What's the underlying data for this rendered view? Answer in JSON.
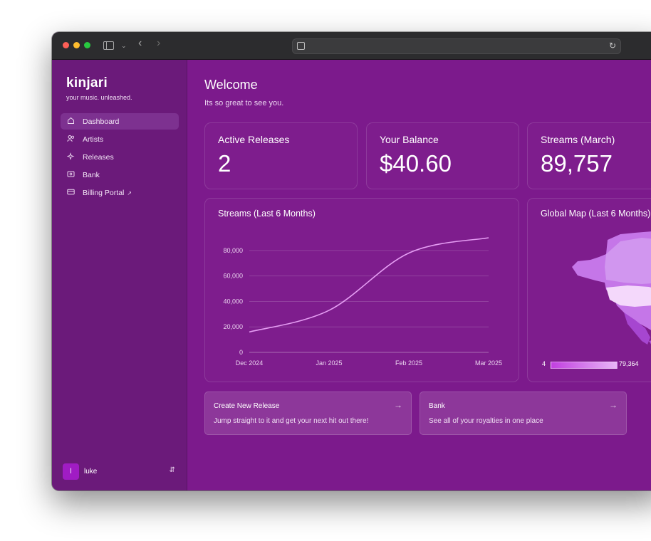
{
  "app": {
    "brand": "kinjari",
    "tagline": "your music. unleashed."
  },
  "nav": {
    "items": [
      {
        "label": "Dashboard",
        "icon": "home-icon",
        "active": true
      },
      {
        "label": "Artists",
        "icon": "users-icon"
      },
      {
        "label": "Releases",
        "icon": "sparkle-icon"
      },
      {
        "label": "Bank",
        "icon": "bank-icon"
      },
      {
        "label": "Billing Portal",
        "icon": "card-icon",
        "external_icon": "external-link-icon"
      }
    ]
  },
  "user": {
    "initial": "l",
    "name": "luke"
  },
  "page": {
    "title": "Welcome",
    "subtitle": "Its so great to see you."
  },
  "stats": {
    "active_releases": {
      "label": "Active Releases",
      "value": "2"
    },
    "balance": {
      "label": "Your Balance",
      "value": "$40.60"
    },
    "streams": {
      "label": "Streams (March)",
      "value": "89,757"
    }
  },
  "streams_chart": {
    "title": "Streams (Last 6 Months)"
  },
  "map_card": {
    "title": "Global Map (Last 6 Months)",
    "legend_min": "4",
    "legend_max": "79,364"
  },
  "actions": [
    {
      "title": "Create New Release",
      "subtitle": "Jump straight to it and get your next hit out there!"
    },
    {
      "title": "Bank",
      "subtitle": "See all of your royalties in one place"
    }
  ],
  "colors": {
    "main_bg": "#7c1a8c",
    "sidebar_bg": "#6b1a7a",
    "line": "#e59df3",
    "map_region": "#c576e8",
    "map_highlight": "#f4d8fb"
  },
  "chart_data": {
    "type": "line",
    "title": "Streams (Last 6 Months)",
    "x": [
      "Dec 2024",
      "Jan 2025",
      "Feb 2025",
      "Mar 2025"
    ],
    "x_ticks": [
      "Dec 2024",
      "Jan 2025",
      "Feb 2025",
      "Mar 2025"
    ],
    "y_ticks": [
      "0",
      "20,000",
      "40,000",
      "60,000",
      "80,000"
    ],
    "ylim": [
      0,
      90000
    ],
    "grid": true,
    "series": [
      {
        "values": [
          16000,
          33000,
          78000,
          90000
        ]
      }
    ]
  }
}
